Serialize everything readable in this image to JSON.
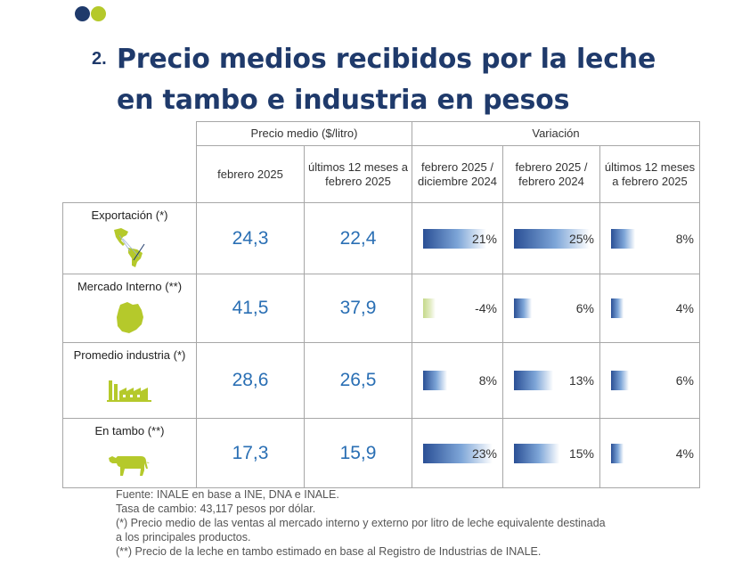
{
  "header": {
    "number": "2.",
    "title": "Precio medios recibidos por la leche en tambo e industria en pesos"
  },
  "colors": {
    "navy": "#1f3a6b",
    "lime": "#b5c92b",
    "value_blue": "#2a6fb4"
  },
  "table": {
    "group_headers": {
      "price": "Precio medio ($/litro)",
      "variation": "Variación"
    },
    "sub_headers": [
      "febrero 2025",
      "últimos 12 meses a febrero 2025",
      "febrero 2025 / diciembre 2024",
      "febrero 2025 / febrero 2024",
      "últimos 12 meses a febrero 2025"
    ],
    "rows": [
      {
        "label": "Exportación (*)",
        "icon": "americas-map-icon",
        "feb": "24,3",
        "last12": "22,4",
        "var1": "21%",
        "var2": "25%",
        "var3": "8%",
        "var1_value": 21,
        "var2_value": 25,
        "var3_value": 8
      },
      {
        "label": "Mercado Interno (**)",
        "icon": "uruguay-map-icon",
        "feb": "41,5",
        "last12": "37,9",
        "var1": "-4%",
        "var2": "6%",
        "var3": "4%",
        "var1_value": -4,
        "var2_value": 6,
        "var3_value": 4
      },
      {
        "label": "Promedio industria (*)",
        "icon": "factory-icon",
        "feb": "28,6",
        "last12": "26,5",
        "var1": "8%",
        "var2": "13%",
        "var3": "6%",
        "var1_value": 8,
        "var2_value": 13,
        "var3_value": 6
      },
      {
        "label": "En tambo (**)",
        "icon": "cow-icon",
        "feb": "17,3",
        "last12": "15,9",
        "var1": "23%",
        "var2": "15%",
        "var3": "4%",
        "var1_value": 23,
        "var2_value": 15,
        "var3_value": 4
      }
    ]
  },
  "notes": [
    "Fuente: INALE en base a INE, DNA e INALE.",
    "Tasa de cambio: 43,117 pesos por dólar.",
    "(*) Precio medio de las ventas al mercado interno y externo por litro de leche equivalente destinada",
    "a los principales productos.",
    "(**) Precio de la leche en tambo estimado en base al Registro de Industrias de INALE."
  ]
}
